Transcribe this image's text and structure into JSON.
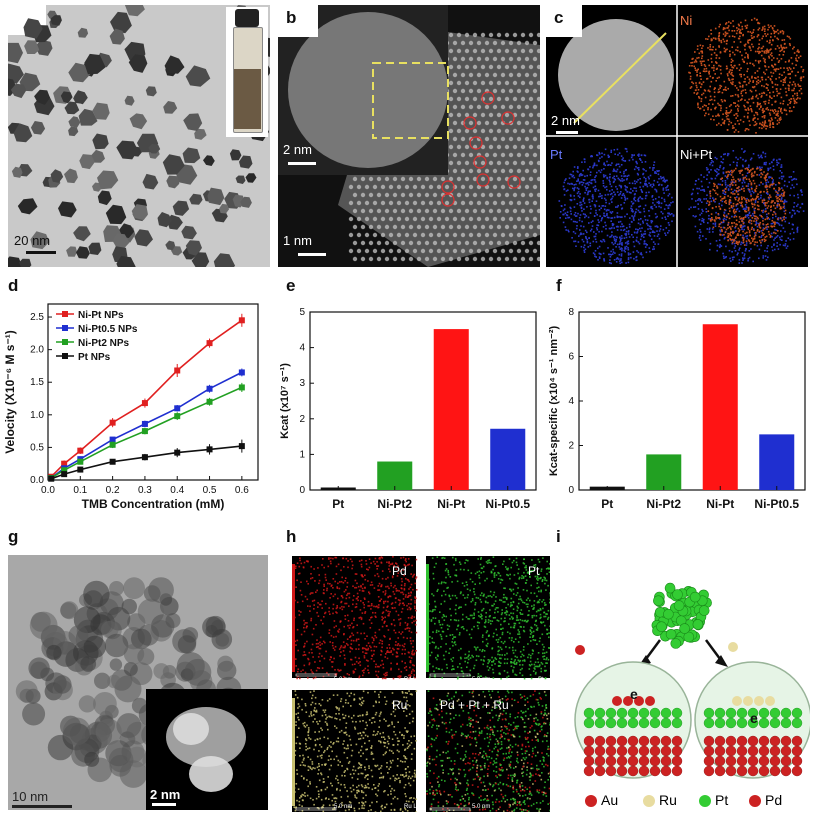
{
  "panels": {
    "a": {
      "letter": "a",
      "scale": "20 nm"
    },
    "b": {
      "letter": "b",
      "scale_main": "1 nm",
      "scale_inset": "2 nm"
    },
    "c": {
      "letter": "c",
      "scale": "2 nm",
      "labels": [
        "Ni",
        "Pt",
        "Ni+Pt"
      ]
    },
    "d": {
      "letter": "d"
    },
    "e": {
      "letter": "e"
    },
    "f": {
      "letter": "f"
    },
    "g": {
      "letter": "g",
      "scale_main": "10 nm",
      "scale_inset": "2 nm"
    },
    "h": {
      "letter": "h",
      "labels": [
        "Pd",
        "Pt",
        "Ru",
        "Pd + Pt + Ru"
      ],
      "scale": "5.0 nm",
      "tags": [
        "Pd L",
        "Pt M",
        "Ru L",
        ""
      ]
    },
    "i": {
      "letter": "i",
      "legend": [
        {
          "label": "Au",
          "color": "#cc2222"
        },
        {
          "label": "Ru",
          "color": "#e8dca0"
        },
        {
          "label": "Pt",
          "color": "#33cc33"
        },
        {
          "label": "Pd",
          "color": "#cc2222"
        }
      ],
      "electron": "e"
    }
  },
  "chart_data": [
    {
      "type": "line",
      "panel": "d",
      "xlabel": "TMB Concentration (mM)",
      "ylabel": "Velocity (X10⁻⁶ M s⁻¹)",
      "xlim": [
        0,
        0.65
      ],
      "ylim": [
        0,
        2.7
      ],
      "x": [
        0.01,
        0.05,
        0.1,
        0.2,
        0.3,
        0.4,
        0.5,
        0.6
      ],
      "xticks": [
        "0.0",
        "0.1",
        "0.2",
        "0.3",
        "0.4",
        "0.5",
        "0.6"
      ],
      "yticks": [
        "0.0",
        "0.5",
        "1.0",
        "1.5",
        "2.0",
        "2.5"
      ],
      "series": [
        {
          "name": "Ni-Pt NPs",
          "color": "#e02020",
          "values": [
            0.05,
            0.25,
            0.45,
            0.88,
            1.18,
            1.68,
            2.1,
            2.45
          ],
          "err": [
            0.03,
            0.05,
            0.05,
            0.07,
            0.07,
            0.1,
            0.07,
            0.1
          ]
        },
        {
          "name": "Ni-Pt0.5 NPs",
          "color": "#1f2fd0",
          "values": [
            0.03,
            0.18,
            0.32,
            0.62,
            0.86,
            1.1,
            1.4,
            1.65
          ],
          "err": [
            0.02,
            0.03,
            0.04,
            0.04,
            0.05,
            0.05,
            0.06,
            0.06
          ]
        },
        {
          "name": "Ni-Pt2 NPs",
          "color": "#22a022",
          "values": [
            0.03,
            0.15,
            0.28,
            0.54,
            0.75,
            0.98,
            1.2,
            1.42
          ],
          "err": [
            0.02,
            0.03,
            0.03,
            0.05,
            0.05,
            0.06,
            0.06,
            0.07
          ]
        },
        {
          "name": "Pt NPs",
          "color": "#111111",
          "values": [
            0.02,
            0.09,
            0.16,
            0.28,
            0.35,
            0.42,
            0.47,
            0.52
          ],
          "err": [
            0.02,
            0.02,
            0.02,
            0.03,
            0.05,
            0.07,
            0.08,
            0.1
          ]
        }
      ],
      "legend": "top-left"
    },
    {
      "type": "bar",
      "panel": "e",
      "categories": [
        "Pt",
        "Ni-Pt2",
        "Ni-Pt",
        "Ni-Pt0.5"
      ],
      "values": [
        0.07,
        0.8,
        4.52,
        1.72
      ],
      "colors": [
        "#111111",
        "#22a022",
        "#ff1414",
        "#1f2fd0"
      ],
      "ylabel": "Kcat (x10⁷ s⁻¹)",
      "ylim": [
        0,
        5
      ],
      "yticks": [
        "0",
        "1",
        "2",
        "3",
        "4",
        "5"
      ]
    },
    {
      "type": "bar",
      "panel": "f",
      "categories": [
        "Pt",
        "Ni-Pt2",
        "Ni-Pt",
        "Ni-Pt0.5"
      ],
      "values": [
        0.15,
        1.6,
        7.45,
        2.5
      ],
      "colors": [
        "#111111",
        "#22a022",
        "#ff1414",
        "#1f2fd0"
      ],
      "ylabel": "Kcat-specific (x10⁴ s⁻¹ nm⁻²)",
      "ylim": [
        0,
        8
      ],
      "yticks": [
        "0",
        "2",
        "4",
        "6",
        "8"
      ]
    }
  ]
}
